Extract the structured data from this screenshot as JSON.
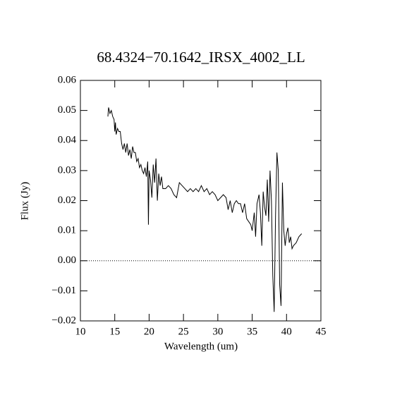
{
  "chart_data": {
    "type": "line",
    "title": "68.4324−70.1642_IRSX_4002_LL",
    "x_label": "Wavelength (um)",
    "y_label": "Flux (Jy)",
    "color": "#000000",
    "x": [
      14.0,
      14.1,
      14.3,
      14.5,
      14.7,
      14.9,
      15.0,
      15.1,
      15.2,
      15.4,
      15.6,
      15.8,
      16.0,
      16.2,
      16.4,
      16.6,
      16.8,
      17.0,
      17.2,
      17.4,
      17.6,
      17.8,
      18.0,
      18.2,
      18.4,
      18.6,
      18.8,
      19.0,
      19.2,
      19.4,
      19.6,
      19.8,
      19.9,
      20.0,
      20.2,
      20.4,
      20.6,
      20.8,
      21.0,
      21.2,
      21.4,
      21.6,
      21.8,
      22.0,
      22.4,
      22.8,
      23.2,
      23.6,
      24.0,
      24.4,
      24.8,
      25.2,
      25.6,
      26.0,
      26.4,
      26.8,
      27.2,
      27.6,
      28.0,
      28.4,
      28.8,
      29.2,
      29.6,
      30.0,
      30.4,
      30.8,
      31.2,
      31.5,
      31.8,
      32.1,
      32.4,
      32.7,
      33.0,
      33.3,
      33.6,
      33.9,
      34.2,
      34.5,
      34.8,
      35.0,
      35.3,
      35.5,
      35.7,
      36.0,
      36.2,
      36.4,
      36.6,
      36.8,
      37.0,
      37.2,
      37.4,
      37.6,
      37.8,
      38.0,
      38.2,
      38.4,
      38.6,
      38.8,
      39.0,
      39.2,
      39.4,
      39.6,
      39.8,
      40.0,
      40.2,
      40.4,
      40.6,
      40.8,
      41.0,
      41.4,
      41.8,
      42.2
    ],
    "values": [
      0.048,
      0.051,
      0.049,
      0.05,
      0.048,
      0.047,
      0.043,
      0.046,
      0.042,
      0.044,
      0.043,
      0.043,
      0.039,
      0.037,
      0.039,
      0.036,
      0.039,
      0.035,
      0.037,
      0.034,
      0.038,
      0.036,
      0.036,
      0.033,
      0.034,
      0.031,
      0.032,
      0.03,
      0.029,
      0.031,
      0.028,
      0.033,
      0.012,
      0.03,
      0.027,
      0.021,
      0.032,
      0.026,
      0.034,
      0.02,
      0.029,
      0.025,
      0.028,
      0.024,
      0.024,
      0.025,
      0.024,
      0.022,
      0.021,
      0.026,
      0.025,
      0.024,
      0.023,
      0.024,
      0.023,
      0.024,
      0.023,
      0.025,
      0.023,
      0.024,
      0.022,
      0.023,
      0.022,
      0.02,
      0.021,
      0.022,
      0.021,
      0.017,
      0.02,
      0.016,
      0.019,
      0.02,
      0.019,
      0.019,
      0.016,
      0.019,
      0.014,
      0.013,
      0.012,
      0.01,
      0.016,
      0.008,
      0.019,
      0.022,
      0.016,
      0.005,
      0.023,
      0.018,
      0.015,
      0.027,
      0.013,
      0.03,
      0.02,
      -0.005,
      -0.017,
      0.015,
      0.036,
      0.03,
      -0.008,
      -0.015,
      0.026,
      0.01,
      0.005,
      0.009,
      0.011,
      0.006,
      0.008,
      0.004,
      0.005,
      0.006,
      0.008,
      0.009
    ],
    "xlim": [
      10,
      45
    ],
    "ylim": [
      -0.02,
      0.06
    ],
    "xticks": [
      10,
      15,
      20,
      25,
      30,
      35,
      40,
      45
    ],
    "yticks": [
      {
        "value": -0.02,
        "label": "−0.02"
      },
      {
        "value": -0.01,
        "label": "−0.01"
      },
      {
        "value": 0,
        "label": "0.00"
      },
      0.01,
      0.02,
      0.03,
      0.04,
      0.05,
      0.06
    ],
    "reference_line": 0
  }
}
